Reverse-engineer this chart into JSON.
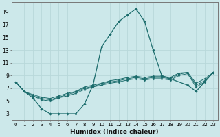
{
  "xlabel": "Humidex (Indice chaleur)",
  "ylabel": "",
  "bg_color": "#cce8ea",
  "line_color": "#1a6b6b",
  "grid_color": "#b8d8da",
  "xlim": [
    -0.5,
    23.5
  ],
  "ylim": [
    2.0,
    20.5
  ],
  "xticks": [
    0,
    1,
    2,
    3,
    4,
    5,
    6,
    7,
    8,
    9,
    10,
    11,
    12,
    13,
    14,
    15,
    16,
    17,
    18,
    19,
    20,
    21,
    22,
    23
  ],
  "yticks": [
    3,
    5,
    7,
    9,
    11,
    13,
    15,
    17,
    19
  ],
  "series": [
    {
      "x": [
        0,
        1,
        2,
        3,
        4,
        5,
        6,
        7,
        8,
        9,
        10,
        11,
        12,
        13,
        14,
        15,
        16,
        17,
        20,
        21,
        23
      ],
      "y": [
        8.0,
        6.5,
        5.5,
        3.8,
        3.0,
        3.0,
        3.0,
        3.0,
        4.5,
        7.5,
        13.5,
        15.5,
        17.5,
        18.5,
        19.5,
        17.5,
        13.0,
        9.0,
        7.5,
        6.5,
        9.5
      ]
    },
    {
      "x": [
        0,
        1,
        2,
        3,
        4,
        5,
        6,
        7,
        8,
        9,
        10,
        11,
        12,
        13,
        14,
        15,
        16,
        17,
        18,
        19,
        20,
        21,
        22,
        23
      ],
      "y": [
        8.0,
        6.5,
        5.8,
        5.2,
        5.0,
        5.5,
        5.8,
        6.2,
        6.8,
        7.2,
        7.5,
        7.8,
        8.0,
        8.3,
        8.5,
        8.3,
        8.5,
        8.5,
        8.3,
        9.0,
        9.3,
        7.2,
        8.0,
        9.5
      ]
    },
    {
      "x": [
        0,
        1,
        2,
        3,
        4,
        5,
        6,
        7,
        8,
        9,
        10,
        11,
        12,
        13,
        14,
        15,
        16,
        17,
        18,
        19,
        20,
        21,
        22,
        23
      ],
      "y": [
        8.0,
        6.5,
        5.8,
        5.4,
        5.2,
        5.6,
        6.0,
        6.4,
        7.0,
        7.3,
        7.7,
        8.0,
        8.2,
        8.5,
        8.7,
        8.5,
        8.7,
        8.7,
        8.5,
        9.2,
        9.5,
        7.5,
        8.2,
        9.5
      ]
    },
    {
      "x": [
        0,
        1,
        2,
        3,
        4,
        5,
        6,
        7,
        8,
        9,
        10,
        11,
        12,
        13,
        14,
        15,
        16,
        17,
        18,
        19,
        20,
        21,
        22,
        23
      ],
      "y": [
        8.0,
        6.5,
        6.0,
        5.6,
        5.4,
        5.8,
        6.2,
        6.5,
        7.2,
        7.5,
        7.8,
        8.2,
        8.4,
        8.7,
        8.9,
        8.7,
        8.9,
        8.9,
        8.7,
        9.4,
        9.5,
        7.8,
        8.5,
        9.5
      ]
    }
  ]
}
